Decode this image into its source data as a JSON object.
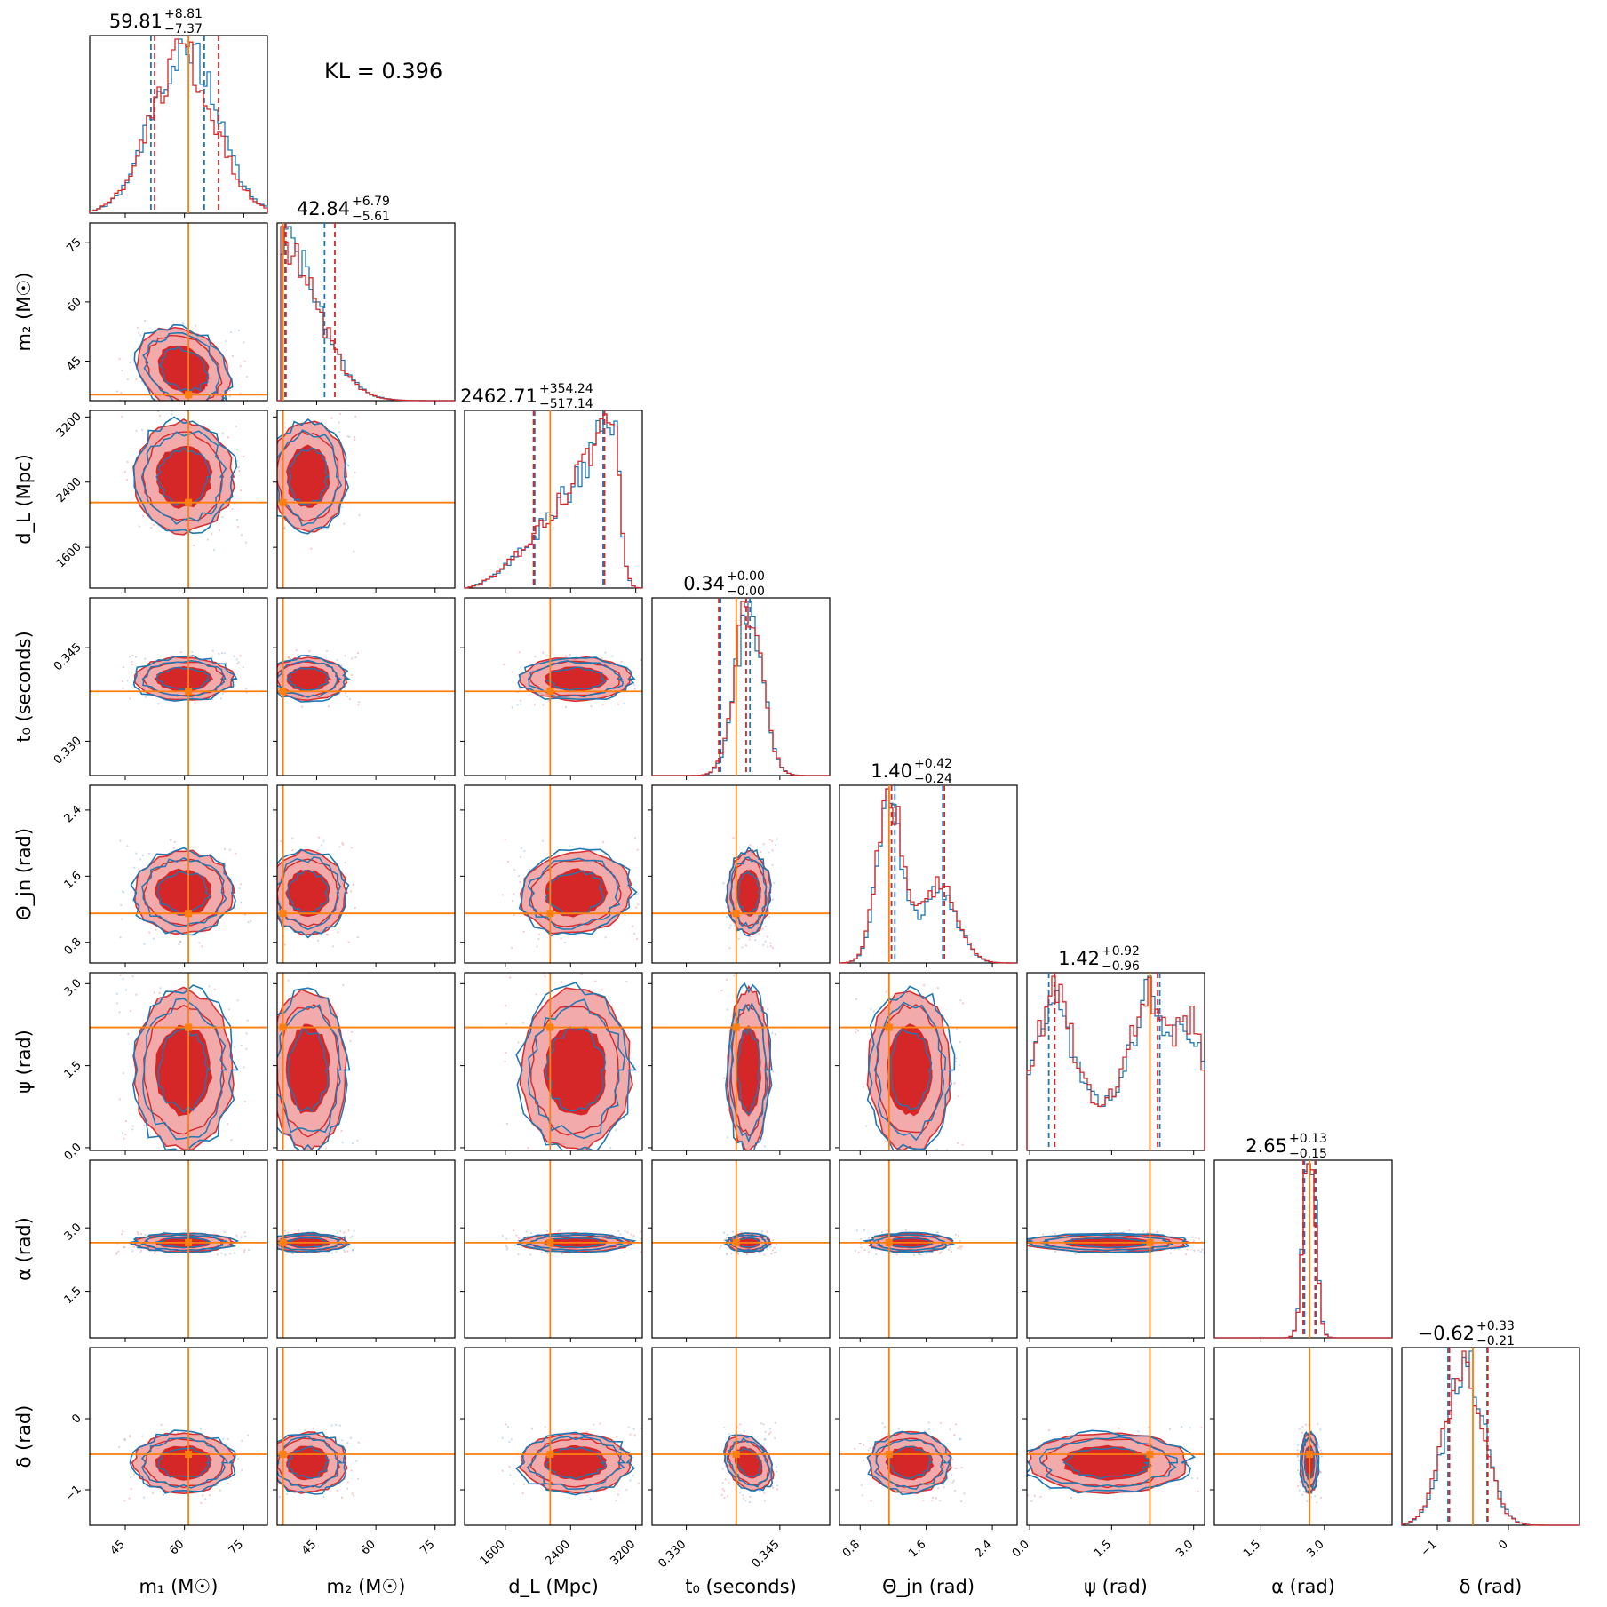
{
  "annotation": {
    "kl_text": "KL = 0.396"
  },
  "colors": {
    "red": "#d62728",
    "blue": "#1f77b4",
    "truth": "#ff7f0e",
    "red_light": "#f2a6a7",
    "red_dark": "#d62728"
  },
  "chart_data": {
    "type": "corner",
    "series": [
      {
        "name": "",
        "color": "#d62728",
        "style": "filled contours + histograms"
      },
      {
        "name": "",
        "color": "#1f77b4",
        "style": "contour lines + histograms"
      }
    ],
    "parameters": [
      {
        "key": "m1",
        "label": "m₁ (M☉)",
        "ticks": [
          45,
          60,
          75
        ],
        "tick_labels": [
          "45",
          "60",
          "75"
        ],
        "range": [
          36,
          81
        ],
        "truth": 61,
        "median": 59.81,
        "plus": "+8.81",
        "minus": "−7.37",
        "title_main": "59.81",
        "q_red": [
          52.44,
          68.62
        ],
        "q_blue": [
          51.5,
          65.0
        ]
      },
      {
        "key": "m2",
        "label": "m₂ (M☉)",
        "ticks": [
          45,
          60,
          75
        ],
        "tick_labels": [
          "45",
          "60",
          "75"
        ],
        "range": [
          35,
          80
        ],
        "truth": 36.5,
        "median": 42.84,
        "plus": "+6.79",
        "minus": "−5.61",
        "title_main": "42.84",
        "q_red": [
          37.23,
          49.63
        ],
        "q_blue": [
          37.0,
          47.0
        ]
      },
      {
        "key": "dL",
        "label": "d_L (Mpc)",
        "ticks": [
          1600,
          2400,
          3200
        ],
        "tick_labels": [
          "1600",
          "2400",
          "3200"
        ],
        "range": [
          1100,
          3280
        ],
        "truth": 2150,
        "median": 2462.71,
        "plus": "+354.24",
        "minus": "−517.14",
        "title_main": "2462.71",
        "q_red": [
          1945.57,
          2816.95
        ],
        "q_blue": [
          1960,
          2800
        ]
      },
      {
        "key": "t0",
        "label": "t₀ (seconds)",
        "ticks": [
          0.33,
          0.345
        ],
        "tick_labels": [
          "0.330",
          "0.345"
        ],
        "range": [
          0.3245,
          0.353
        ],
        "truth": 0.338,
        "median": 0.34,
        "plus": "+0.00",
        "minus": "−0.00",
        "title_main": "0.34",
        "q_red": [
          0.3352,
          0.3396
        ],
        "q_blue": [
          0.3355,
          0.3402
        ]
      },
      {
        "key": "theta_jn",
        "label": "Θ_jn (rad)",
        "ticks": [
          0.8,
          1.6,
          2.4
        ],
        "tick_labels": [
          "0.8",
          "1.6",
          "2.4"
        ],
        "range": [
          0.55,
          2.7
        ],
        "truth": 1.15,
        "median": 1.4,
        "plus": "+0.42",
        "minus": "−0.24",
        "title_main": "1.40",
        "q_red": [
          1.18,
          1.82
        ],
        "q_blue": [
          1.22,
          1.8
        ]
      },
      {
        "key": "psi",
        "label": "ψ (rad)",
        "ticks": [
          0.0,
          1.5,
          3.0
        ],
        "tick_labels": [
          "0.0",
          "1.5",
          "3.0"
        ],
        "range": [
          -0.05,
          3.2
        ],
        "truth": 2.2,
        "median": 1.42,
        "plus": "+0.92",
        "minus": "−0.96",
        "title_main": "1.42",
        "q_red": [
          0.46,
          2.34
        ],
        "q_blue": [
          0.35,
          2.38
        ]
      },
      {
        "key": "alpha",
        "label": "α (rad)",
        "ticks": [
          1.5,
          3.0
        ],
        "tick_labels": [
          "1.5",
          "3.0"
        ],
        "range": [
          0.4,
          4.6
        ],
        "truth": 2.65,
        "median": 2.65,
        "plus": "+0.13",
        "minus": "−0.15",
        "title_main": "2.65",
        "q_red": [
          2.5,
          2.78
        ],
        "q_blue": [
          2.53,
          2.8
        ]
      },
      {
        "key": "delta",
        "label": "δ (rad)",
        "ticks": [
          -1,
          0
        ],
        "tick_labels": [
          "−1",
          "0"
        ],
        "range": [
          -1.5,
          1.0
        ],
        "truth": -0.5,
        "median": -0.62,
        "plus": "+0.33",
        "minus": "−0.21",
        "title_main": "−0.62",
        "q_red": [
          -0.83,
          -0.29
        ],
        "q_blue": [
          -0.85,
          -0.3
        ]
      }
    ]
  }
}
